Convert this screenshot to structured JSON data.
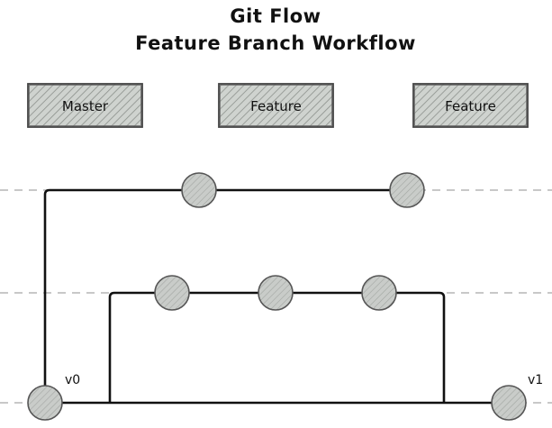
{
  "title": {
    "line1": "Git Flow",
    "line2": "Feature Branch Workflow"
  },
  "legend_boxes": [
    {
      "label": "Master"
    },
    {
      "label": "Feature"
    },
    {
      "label": "Feature"
    }
  ],
  "commit_labels": {
    "start": "v0",
    "end": "v1"
  },
  "colors": {
    "box_fill": "#cfd3cf",
    "box_stroke": "#444444",
    "hatch": "#8c918c",
    "commit_fill": "#c9ccc9",
    "commit_stroke": "#555555",
    "line": "#111111",
    "lane_dash": "#b5b5b5"
  }
}
